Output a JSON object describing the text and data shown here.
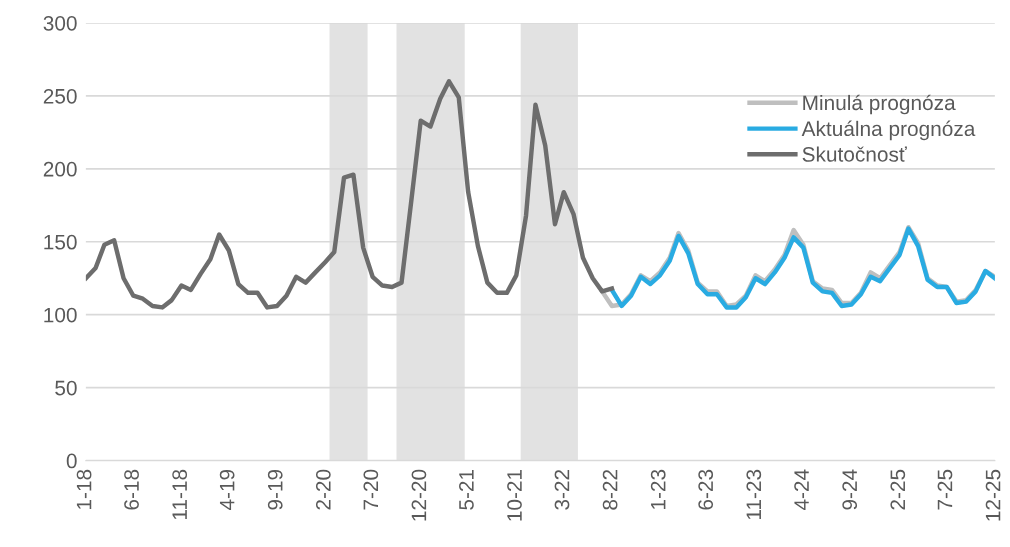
{
  "chart_data": {
    "type": "line",
    "x": [
      "2018-01",
      "2018-02",
      "2018-03",
      "2018-04",
      "2018-05",
      "2018-06",
      "2018-07",
      "2018-08",
      "2018-09",
      "2018-10",
      "2018-11",
      "2018-12",
      "2019-01",
      "2019-02",
      "2019-03",
      "2019-04",
      "2019-05",
      "2019-06",
      "2019-07",
      "2019-08",
      "2019-09",
      "2019-10",
      "2019-11",
      "2019-12",
      "2020-01",
      "2020-02",
      "2020-03",
      "2020-04",
      "2020-05",
      "2020-06",
      "2020-07",
      "2020-08",
      "2020-09",
      "2020-10",
      "2020-11",
      "2020-12",
      "2021-01",
      "2021-02",
      "2021-03",
      "2021-04",
      "2021-05",
      "2021-06",
      "2021-07",
      "2021-08",
      "2021-09",
      "2021-10",
      "2021-11",
      "2021-12",
      "2022-01",
      "2022-02",
      "2022-03",
      "2022-04",
      "2022-05",
      "2022-06",
      "2022-07",
      "2022-08",
      "2022-09",
      "2022-10",
      "2022-11",
      "2022-12",
      "2023-01",
      "2023-02",
      "2023-03",
      "2023-04",
      "2023-05",
      "2023-06",
      "2023-07",
      "2023-08",
      "2023-09",
      "2023-10",
      "2023-11",
      "2023-12",
      "2024-01",
      "2024-02",
      "2024-03",
      "2024-04",
      "2024-05",
      "2024-06",
      "2024-07",
      "2024-08",
      "2024-09",
      "2024-10",
      "2024-11",
      "2024-12",
      "2025-01",
      "2025-02",
      "2025-03",
      "2025-04",
      "2025-05",
      "2025-06",
      "2025-07",
      "2025-08",
      "2025-09",
      "2025-10",
      "2025-11",
      "2025-12"
    ],
    "series": [
      {
        "name": "Minulá prognóza",
        "color": "#bfbfbf",
        "values": [
          null,
          null,
          null,
          null,
          null,
          null,
          null,
          null,
          null,
          null,
          null,
          null,
          null,
          null,
          null,
          null,
          null,
          null,
          null,
          null,
          null,
          null,
          null,
          null,
          null,
          null,
          null,
          null,
          null,
          null,
          null,
          null,
          null,
          null,
          null,
          null,
          null,
          null,
          null,
          null,
          null,
          null,
          null,
          null,
          null,
          null,
          null,
          null,
          null,
          null,
          null,
          null,
          null,
          null,
          116,
          106,
          107,
          114,
          127,
          123,
          129,
          139,
          156,
          144,
          122,
          116,
          116,
          106,
          107,
          113,
          127,
          123,
          131,
          141,
          158,
          148,
          123,
          118,
          117,
          108,
          108,
          115,
          129,
          125,
          134,
          143,
          160,
          149,
          125,
          120,
          119,
          109,
          110,
          117,
          130,
          126
        ]
      },
      {
        "name": "Aktuálna prognóza",
        "color": "#29abe2",
        "values": [
          null,
          null,
          null,
          null,
          null,
          null,
          null,
          null,
          null,
          null,
          null,
          null,
          null,
          null,
          null,
          null,
          null,
          null,
          null,
          null,
          null,
          null,
          null,
          null,
          null,
          null,
          null,
          null,
          null,
          null,
          null,
          null,
          null,
          null,
          null,
          null,
          null,
          null,
          null,
          null,
          null,
          null,
          null,
          null,
          null,
          null,
          null,
          null,
          null,
          null,
          null,
          null,
          null,
          null,
          null,
          117,
          106,
          113,
          126,
          121,
          127,
          137,
          154,
          142,
          121,
          114,
          114,
          105,
          105,
          112,
          125,
          121,
          129,
          139,
          153,
          146,
          122,
          116,
          115,
          106,
          107,
          114,
          126,
          123,
          132,
          141,
          159,
          147,
          124,
          119,
          119,
          108,
          109,
          116,
          130,
          125
        ]
      },
      {
        "name": "Skutočnosť",
        "color": "#6d6d6d",
        "values": [
          125,
          132,
          148,
          151,
          125,
          113,
          111,
          106,
          105,
          110,
          120,
          117,
          128,
          138,
          155,
          144,
          121,
          115,
          115,
          105,
          106,
          113,
          126,
          122,
          129,
          136,
          143,
          194,
          196,
          146,
          126,
          120,
          119,
          122,
          178,
          233,
          229,
          248,
          260,
          249,
          184,
          147,
          122,
          115,
          115,
          127,
          168,
          244,
          216,
          162,
          184,
          169,
          139,
          125,
          116,
          118,
          null,
          null,
          null,
          null,
          null,
          null,
          null,
          null,
          null,
          null,
          null,
          null,
          null,
          null,
          null,
          null,
          null,
          null,
          null,
          null,
          null,
          null,
          null,
          null,
          null,
          null,
          null,
          null,
          null,
          null,
          null,
          null,
          null,
          null,
          null,
          null,
          null,
          null,
          null,
          null
        ]
      }
    ],
    "xlim": [
      "2018-01",
      "2025-12"
    ],
    "xticks": [
      {
        "value": "2018-01",
        "label": "1-18"
      },
      {
        "value": "2018-06",
        "label": "6-18"
      },
      {
        "value": "2018-11",
        "label": "11-18"
      },
      {
        "value": "2019-04",
        "label": "4-19"
      },
      {
        "value": "2019-09",
        "label": "9-19"
      },
      {
        "value": "2020-02",
        "label": "2-20"
      },
      {
        "value": "2020-07",
        "label": "7-20"
      },
      {
        "value": "2020-12",
        "label": "12-20"
      },
      {
        "value": "2021-05",
        "label": "5-21"
      },
      {
        "value": "2021-10",
        "label": "10-21"
      },
      {
        "value": "2022-03",
        "label": "3-22"
      },
      {
        "value": "2022-08",
        "label": "8-22"
      },
      {
        "value": "2023-01",
        "label": "1-23"
      },
      {
        "value": "2023-06",
        "label": "6-23"
      },
      {
        "value": "2023-11",
        "label": "11-23"
      },
      {
        "value": "2024-04",
        "label": "4-24"
      },
      {
        "value": "2024-09",
        "label": "9-24"
      },
      {
        "value": "2025-02",
        "label": "2-25"
      },
      {
        "value": "2025-07",
        "label": "7-25"
      },
      {
        "value": "2025-12",
        "label": "12-25"
      }
    ],
    "ylim": [
      0,
      300
    ],
    "yticks": [
      0,
      50,
      100,
      150,
      200,
      250,
      300
    ],
    "bands": [
      {
        "axis": "x",
        "from": "2020-02-15",
        "to": "2020-06-15",
        "color": "#e2e2e2"
      },
      {
        "axis": "x",
        "from": "2020-09-15",
        "to": "2021-04-20",
        "color": "#e2e2e2"
      },
      {
        "axis": "x",
        "from": "2021-10-15",
        "to": "2022-04-15",
        "color": "#e2e2e2"
      }
    ],
    "grid": "y",
    "legend": "top right",
    "line_style": "solid",
    "marker": "none"
  }
}
